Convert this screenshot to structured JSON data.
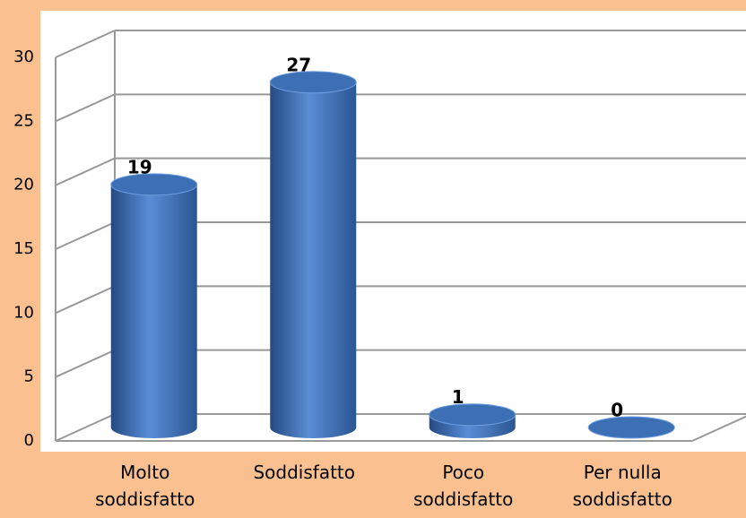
{
  "chart_data": {
    "type": "bar3d",
    "categories": [
      "Molto soddisfatto",
      "Soddisfatto",
      "Poco soddisfatto",
      "Per nulla soddisfatto"
    ],
    "values": [
      19,
      27,
      1,
      0
    ],
    "color": "#4a7cc4",
    "ylim": [
      0,
      30
    ],
    "yticks": [
      0,
      5,
      10,
      15,
      20,
      25,
      30
    ],
    "grid": true
  }
}
